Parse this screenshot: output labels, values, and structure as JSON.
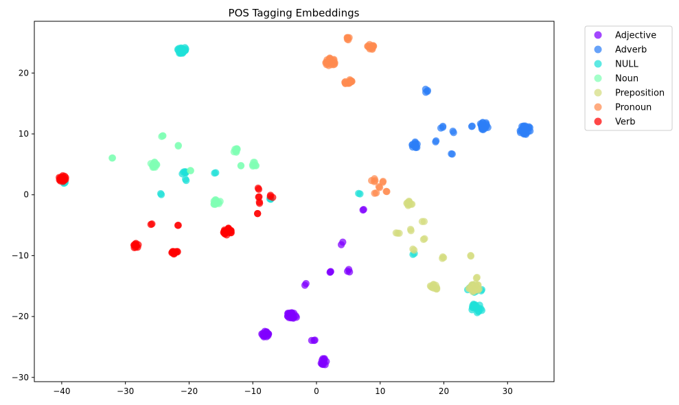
{
  "chart_data": {
    "type": "scatter",
    "title": "POS Tagging Embeddings",
    "xlabel": "",
    "ylabel": "",
    "xlim": [
      -44.3,
      37.3
    ],
    "ylim": [
      -30.7,
      28.5
    ],
    "grid": false,
    "legend_placement": "outside-top-right",
    "xticks": [
      -40,
      -30,
      -20,
      -10,
      0,
      10,
      20,
      30
    ],
    "yticks": [
      -30,
      -20,
      -10,
      0,
      10,
      20
    ],
    "series": [
      {
        "name": "Adjective",
        "color": "#8000ff",
        "clusters": [
          {
            "x": 7.5,
            "y": -2.3,
            "spread": 0.3,
            "count": 2
          },
          {
            "x": 4.0,
            "y": -8.0,
            "spread": 0.3,
            "count": 2
          },
          {
            "x": 2.2,
            "y": -12.5,
            "spread": 0.3,
            "count": 3
          },
          {
            "x": 5.0,
            "y": -12.5,
            "spread": 0.3,
            "count": 3
          },
          {
            "x": -1.8,
            "y": -14.7,
            "spread": 0.3,
            "count": 2
          },
          {
            "x": -3.8,
            "y": -19.8,
            "spread": 0.8,
            "count": 25
          },
          {
            "x": -8.0,
            "y": -22.9,
            "spread": 0.6,
            "count": 14
          },
          {
            "x": -0.5,
            "y": -24.0,
            "spread": 0.3,
            "count": 3
          },
          {
            "x": 1.2,
            "y": -27.4,
            "spread": 0.6,
            "count": 12
          }
        ]
      },
      {
        "name": "Adverb",
        "color": "#2c7ef7",
        "clusters": [
          {
            "x": 32.8,
            "y": 10.6,
            "spread": 0.9,
            "count": 30
          },
          {
            "x": 26.3,
            "y": 11.3,
            "spread": 0.7,
            "count": 20
          },
          {
            "x": 24.5,
            "y": 11.3,
            "spread": 0.2,
            "count": 2
          },
          {
            "x": 17.2,
            "y": 17.1,
            "spread": 0.3,
            "count": 4
          },
          {
            "x": 19.8,
            "y": 11.0,
            "spread": 0.3,
            "count": 3
          },
          {
            "x": 21.5,
            "y": 10.3,
            "spread": 0.2,
            "count": 2
          },
          {
            "x": 15.5,
            "y": 8.2,
            "spread": 0.6,
            "count": 14
          },
          {
            "x": 18.8,
            "y": 8.8,
            "spread": 0.2,
            "count": 2
          },
          {
            "x": 21.3,
            "y": 6.8,
            "spread": 0.2,
            "count": 2
          }
        ]
      },
      {
        "name": "NULL",
        "color": "#1ee0d8",
        "clusters": [
          {
            "x": -21.2,
            "y": 23.8,
            "spread": 0.7,
            "count": 22
          },
          {
            "x": -20.8,
            "y": 3.7,
            "spread": 0.4,
            "count": 6
          },
          {
            "x": -20.5,
            "y": 2.5,
            "spread": 0.2,
            "count": 2
          },
          {
            "x": -16.0,
            "y": 3.6,
            "spread": 0.2,
            "count": 2
          },
          {
            "x": -24.3,
            "y": 0.1,
            "spread": 0.2,
            "count": 2
          },
          {
            "x": -39.5,
            "y": 2.0,
            "spread": 0.3,
            "count": 3
          },
          {
            "x": -7.3,
            "y": -0.8,
            "spread": 0.3,
            "count": 3
          },
          {
            "x": 6.8,
            "y": 0.2,
            "spread": 0.2,
            "count": 2
          },
          {
            "x": 15.2,
            "y": -9.7,
            "spread": 0.2,
            "count": 2
          },
          {
            "x": 24.5,
            "y": -15.5,
            "spread": 0.8,
            "count": 14
          },
          {
            "x": 25.2,
            "y": -18.6,
            "spread": 0.9,
            "count": 18
          },
          {
            "x": 26.0,
            "y": -15.7,
            "spread": 0.2,
            "count": 2
          }
        ]
      },
      {
        "name": "Noun",
        "color": "#80ffb4",
        "clusters": [
          {
            "x": -24.3,
            "y": 9.5,
            "spread": 0.3,
            "count": 3
          },
          {
            "x": -21.7,
            "y": 8.1,
            "spread": 0.2,
            "count": 2
          },
          {
            "x": -32.2,
            "y": 6.1,
            "spread": 0.3,
            "count": 2
          },
          {
            "x": -25.5,
            "y": 5.0,
            "spread": 0.6,
            "count": 15
          },
          {
            "x": -19.7,
            "y": 3.9,
            "spread": 0.2,
            "count": 2
          },
          {
            "x": -15.6,
            "y": -1.3,
            "spread": 0.6,
            "count": 16
          },
          {
            "x": -12.7,
            "y": 7.3,
            "spread": 0.4,
            "count": 8
          },
          {
            "x": -9.8,
            "y": 5.0,
            "spread": 0.4,
            "count": 8
          },
          {
            "x": -11.9,
            "y": 4.7,
            "spread": 0.2,
            "count": 2
          }
        ]
      },
      {
        "name": "Preposition",
        "color": "#d4dd80",
        "clusters": [
          {
            "x": 14.6,
            "y": -1.4,
            "spread": 0.5,
            "count": 10
          },
          {
            "x": 16.8,
            "y": -4.4,
            "spread": 0.2,
            "count": 2
          },
          {
            "x": 14.7,
            "y": -5.8,
            "spread": 0.2,
            "count": 2
          },
          {
            "x": 12.7,
            "y": -6.3,
            "spread": 0.3,
            "count": 3
          },
          {
            "x": 16.9,
            "y": -7.2,
            "spread": 0.2,
            "count": 2
          },
          {
            "x": 15.2,
            "y": -9.0,
            "spread": 0.2,
            "count": 2
          },
          {
            "x": 19.8,
            "y": -10.3,
            "spread": 0.2,
            "count": 3
          },
          {
            "x": 24.3,
            "y": -9.9,
            "spread": 0.2,
            "count": 2
          },
          {
            "x": 18.4,
            "y": -15.2,
            "spread": 0.6,
            "count": 10
          },
          {
            "x": 24.8,
            "y": -15.2,
            "spread": 0.9,
            "count": 24
          },
          {
            "x": 25.2,
            "y": -13.6,
            "spread": 0.2,
            "count": 2
          }
        ]
      },
      {
        "name": "Pronoun",
        "color": "#ff8a4f",
        "clusters": [
          {
            "x": 2.2,
            "y": 21.8,
            "spread": 0.8,
            "count": 26
          },
          {
            "x": 5.0,
            "y": 18.5,
            "spread": 0.6,
            "count": 16
          },
          {
            "x": 5.0,
            "y": 25.8,
            "spread": 0.4,
            "count": 6
          },
          {
            "x": 8.5,
            "y": 24.2,
            "spread": 0.6,
            "count": 14
          },
          {
            "x": 8.9,
            "y": 2.4,
            "spread": 0.5,
            "count": 4
          },
          {
            "x": 10.5,
            "y": 2.2,
            "spread": 0.2,
            "count": 2
          },
          {
            "x": 9.8,
            "y": 1.2,
            "spread": 0.2,
            "count": 2
          },
          {
            "x": 11.0,
            "y": 0.4,
            "spread": 0.2,
            "count": 2
          },
          {
            "x": 9.3,
            "y": 0.1,
            "spread": 0.3,
            "count": 2
          }
        ]
      },
      {
        "name": "Verb",
        "color": "#ff0000",
        "clusters": [
          {
            "x": -39.9,
            "y": 2.7,
            "spread": 0.6,
            "count": 18
          },
          {
            "x": -25.9,
            "y": -4.8,
            "spread": 0.2,
            "count": 2
          },
          {
            "x": -21.8,
            "y": -5.1,
            "spread": 0.2,
            "count": 2
          },
          {
            "x": -28.4,
            "y": -8.4,
            "spread": 0.5,
            "count": 10
          },
          {
            "x": -22.3,
            "y": -9.3,
            "spread": 0.5,
            "count": 12
          },
          {
            "x": -14.0,
            "y": -6.1,
            "spread": 0.7,
            "count": 20
          },
          {
            "x": -9.0,
            "y": 1.0,
            "spread": 0.2,
            "count": 2
          },
          {
            "x": -9.0,
            "y": -0.3,
            "spread": 0.2,
            "count": 2
          },
          {
            "x": -9.0,
            "y": -1.3,
            "spread": 0.2,
            "count": 2
          },
          {
            "x": -9.4,
            "y": -3.1,
            "spread": 0.2,
            "count": 2
          },
          {
            "x": -7.1,
            "y": -0.3,
            "spread": 0.3,
            "count": 3
          }
        ]
      }
    ]
  }
}
